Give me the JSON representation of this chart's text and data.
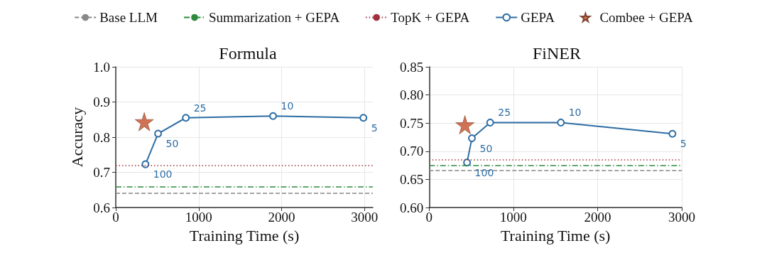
{
  "chart_data": [
    {
      "type": "line",
      "title": "Formula",
      "xlabel": "Training Time (s)",
      "ylabel": "Accuracy",
      "xlim": [
        0,
        3100
      ],
      "xticks": [
        0,
        1000,
        2000,
        3000
      ],
      "ylim": [
        0.6,
        1.0
      ],
      "annotations": [
        {
          "text": "100",
          "x": 358,
          "y": 0.723
        },
        {
          "text": "50",
          "x": 510,
          "y": 0.81
        },
        {
          "text": "25",
          "x": 845,
          "y": 0.855
        },
        {
          "text": "10",
          "x": 1897,
          "y": 0.86
        },
        {
          "text": "5",
          "x": 2986,
          "y": 0.855
        }
      ],
      "yticks": [
        {
          "value": 0.6,
          "label": "0.6"
        },
        {
          "value": 0.7,
          "label": "0.7"
        },
        {
          "value": 0.8,
          "label": "0.8"
        },
        {
          "value": 0.9,
          "label": "0.9"
        },
        {
          "value": 1.0,
          "label": "1.0"
        }
      ],
      "grid": true,
      "legend": "top",
      "line_style": "solid",
      "series": [
        {
          "name": "GEPA",
          "type": "line",
          "color": "#2e6da4",
          "marker": "circle",
          "x": [
            358,
            510,
            845,
            1897,
            2986
          ],
          "values": [
            0.723,
            0.81,
            0.855,
            0.86,
            0.855
          ]
        },
        {
          "name": "Combee + GEPA",
          "type": "scatter",
          "color": "#c4502a",
          "marker": "star",
          "x": [
            344
          ],
          "values": [
            0.844
          ]
        }
      ],
      "ref_lines": [
        {
          "axis": "y",
          "value": 0.64,
          "label": "Base LLM",
          "color": "#888888",
          "line_style": "dashed"
        },
        {
          "axis": "y",
          "value": 0.66,
          "label": "Summarization + GEPA",
          "color": "#2e8b3e",
          "line_style": "dashdot"
        },
        {
          "axis": "y",
          "value": 0.72,
          "label": "TopK + GEPA",
          "color": "#a0303c",
          "line_style": "dotted"
        }
      ]
    },
    {
      "type": "line",
      "title": "FiNER",
      "xlabel": "Training Time (s)",
      "xlim": [
        0,
        3000
      ],
      "xticks": [
        0,
        1000,
        2000,
        3000
      ],
      "ylim": [
        0.6,
        0.85
      ],
      "annotations": [
        {
          "text": "100",
          "x": 450,
          "y": 0.68
        },
        {
          "text": "50",
          "x": 508,
          "y": 0.723
        },
        {
          "text": "25",
          "x": 725,
          "y": 0.751
        },
        {
          "text": "10",
          "x": 1564,
          "y": 0.751
        },
        {
          "text": "5",
          "x": 2889,
          "y": 0.731
        }
      ],
      "yticks": [
        {
          "value": 0.6,
          "label": "0.60"
        },
        {
          "value": 0.65,
          "label": "0.65"
        },
        {
          "value": 0.7,
          "label": "0.70"
        },
        {
          "value": 0.75,
          "label": "0.75"
        },
        {
          "value": 0.8,
          "label": "0.80"
        },
        {
          "value": 0.85,
          "label": "0.85"
        }
      ],
      "grid": true,
      "line_style": "solid",
      "series": [
        {
          "type": "line",
          "color": "#2e6da4",
          "marker": "circle",
          "x": [
            450,
            508,
            725,
            1564,
            2889
          ],
          "values": [
            0.68,
            0.723,
            0.751,
            0.751,
            0.731
          ]
        },
        {
          "type": "scatter",
          "color": "#c4502a",
          "marker": "star",
          "x": [
            425
          ],
          "values": [
            0.747
          ]
        }
      ],
      "ref_lines": [
        {
          "axis": "y",
          "value": 0.666,
          "color": "#888888",
          "line_style": "dashed"
        },
        {
          "axis": "y",
          "value": 0.675,
          "color": "#2e8b3e",
          "line_style": "dashdot"
        },
        {
          "axis": "y",
          "value": 0.685,
          "color": "#a0303c",
          "line_style": "dotted"
        }
      ]
    }
  ]
}
